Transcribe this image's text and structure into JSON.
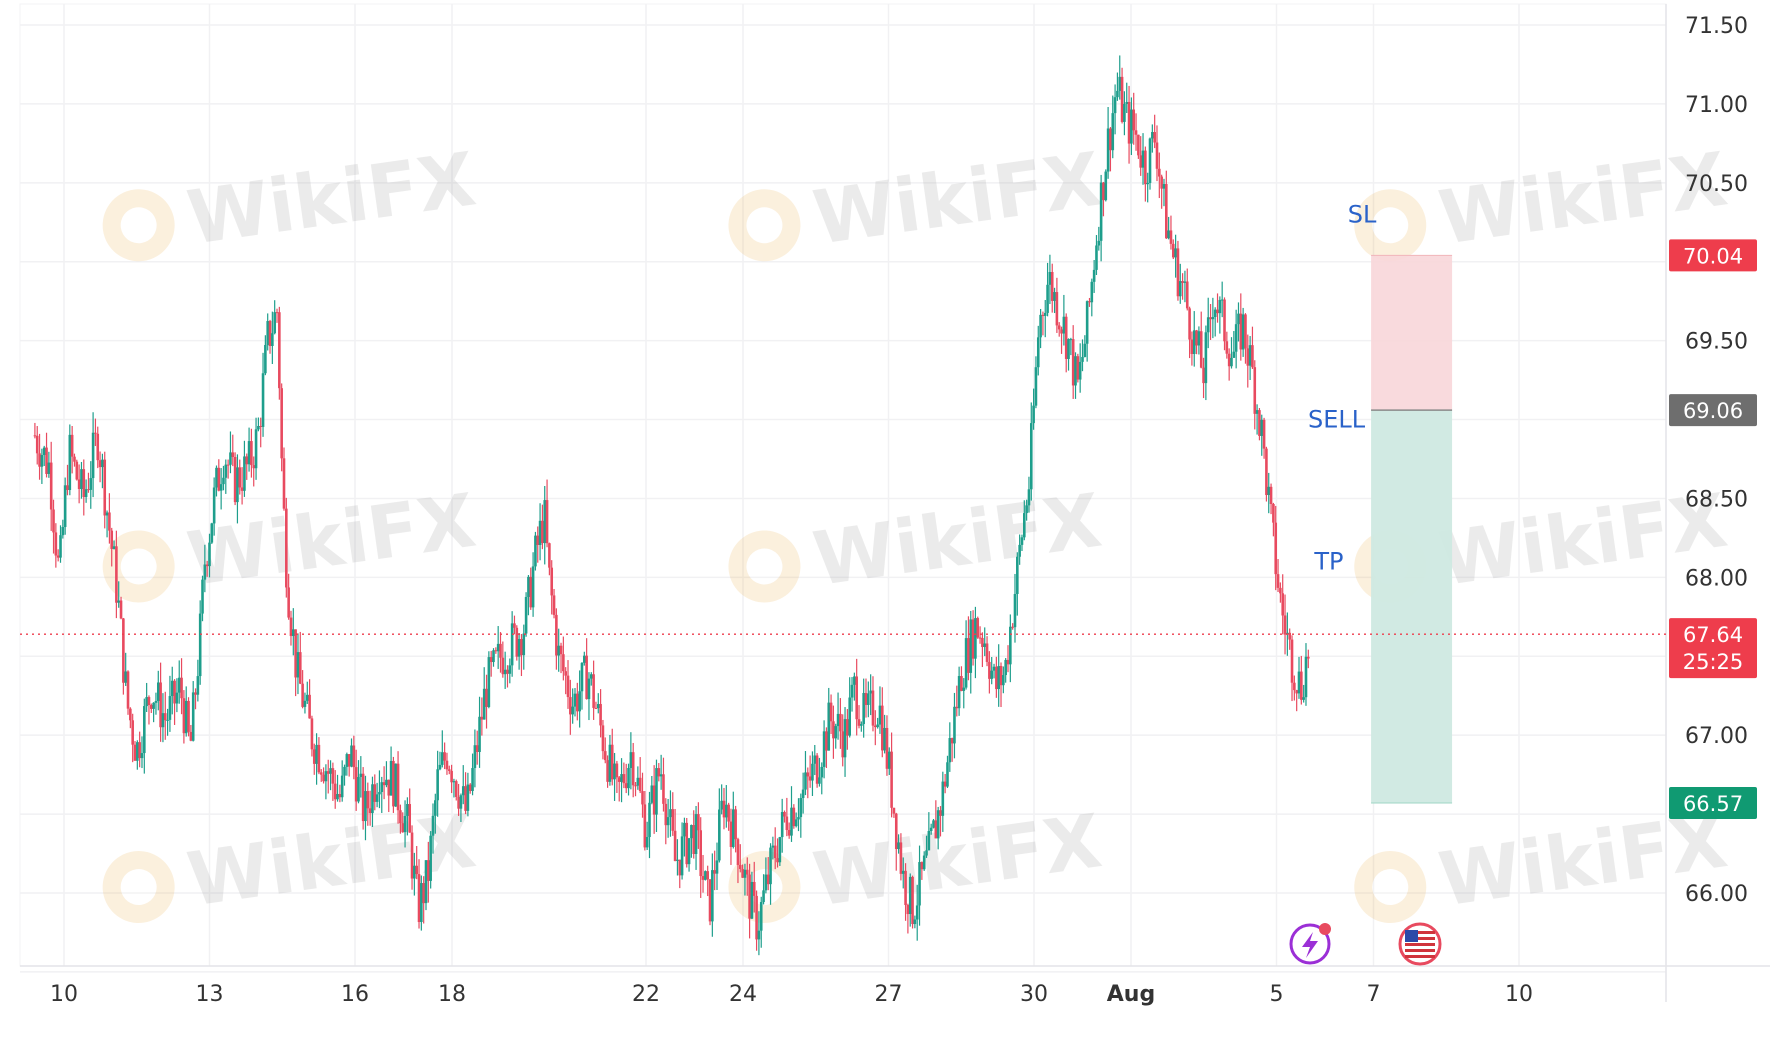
{
  "chart_data": {
    "type": "candlestick",
    "y_ticks": [
      71.5,
      71.0,
      70.5,
      69.5,
      68.5,
      68.0,
      67.0,
      66.0
    ],
    "ylim": [
      65.3,
      71.65
    ],
    "x_ticks": [
      {
        "label": "10",
        "day": 10
      },
      {
        "label": "13",
        "day": 13
      },
      {
        "label": "16",
        "day": 16
      },
      {
        "label": "18",
        "day": 18
      },
      {
        "label": "22",
        "day": 22
      },
      {
        "label": "24",
        "day": 24
      },
      {
        "label": "27",
        "day": 27
      },
      {
        "label": "30",
        "day": 30
      },
      {
        "label": "Aug",
        "day": 32
      },
      {
        "label": "5",
        "day": 35
      },
      {
        "label": "7",
        "day": 37
      },
      {
        "label": "10",
        "day": 40
      }
    ],
    "price_path": [
      [
        9.4,
        68.9
      ],
      [
        9.7,
        68.7
      ],
      [
        9.9,
        68.0
      ],
      [
        10.1,
        68.8
      ],
      [
        10.4,
        68.5
      ],
      [
        10.7,
        68.9
      ],
      [
        10.9,
        68.4
      ],
      [
        11.1,
        67.9
      ],
      [
        11.3,
        67.2
      ],
      [
        11.5,
        66.9
      ],
      [
        11.8,
        67.3
      ],
      [
        12.1,
        67.1
      ],
      [
        12.4,
        67.3
      ],
      [
        12.6,
        66.9
      ],
      [
        12.8,
        67.6
      ],
      [
        12.9,
        68.1
      ],
      [
        13.1,
        68.5
      ],
      [
        13.3,
        68.8
      ],
      [
        13.5,
        68.6
      ],
      [
        13.8,
        68.7
      ],
      [
        14.0,
        68.9
      ],
      [
        14.2,
        69.5
      ],
      [
        14.4,
        69.7
      ],
      [
        14.5,
        68.6
      ],
      [
        14.6,
        68.0
      ],
      [
        14.8,
        67.4
      ],
      [
        15.1,
        67.0
      ],
      [
        15.4,
        66.8
      ],
      [
        15.7,
        66.6
      ],
      [
        15.9,
        66.9
      ],
      [
        16.2,
        66.5
      ],
      [
        16.5,
        66.8
      ],
      [
        16.8,
        66.7
      ],
      [
        17.1,
        66.4
      ],
      [
        17.3,
        65.9
      ],
      [
        17.5,
        66.1
      ],
      [
        17.7,
        66.7
      ],
      [
        17.9,
        66.9
      ],
      [
        18.1,
        66.7
      ],
      [
        18.3,
        66.5
      ],
      [
        18.5,
        66.9
      ],
      [
        18.7,
        67.3
      ],
      [
        19.0,
        67.5
      ],
      [
        19.3,
        67.6
      ],
      [
        19.5,
        67.7
      ],
      [
        19.7,
        68.1
      ],
      [
        19.9,
        68.4
      ],
      [
        20.0,
        68.0
      ],
      [
        20.2,
        67.5
      ],
      [
        20.5,
        67.2
      ],
      [
        20.8,
        67.4
      ],
      [
        21.1,
        67.0
      ],
      [
        21.4,
        66.6
      ],
      [
        21.7,
        66.9
      ],
      [
        22.0,
        66.4
      ],
      [
        22.3,
        66.8
      ],
      [
        22.6,
        66.2
      ],
      [
        23.0,
        66.4
      ],
      [
        23.3,
        65.9
      ],
      [
        23.6,
        66.6
      ],
      [
        23.9,
        66.3
      ],
      [
        24.1,
        66.0
      ],
      [
        24.3,
        65.8
      ],
      [
        24.6,
        66.2
      ],
      [
        24.9,
        66.5
      ],
      [
        25.2,
        66.6
      ],
      [
        25.5,
        66.8
      ],
      [
        25.8,
        67.1
      ],
      [
        26.1,
        67.0
      ],
      [
        26.3,
        67.3
      ],
      [
        26.5,
        67.1
      ],
      [
        26.8,
        67.2
      ],
      [
        27.0,
        66.8
      ],
      [
        27.3,
        66.1
      ],
      [
        27.5,
        65.9
      ],
      [
        27.8,
        66.2
      ],
      [
        28.1,
        66.6
      ],
      [
        28.3,
        67.0
      ],
      [
        28.5,
        67.4
      ],
      [
        28.8,
        67.7
      ],
      [
        29.0,
        67.6
      ],
      [
        29.2,
        67.3
      ],
      [
        29.4,
        67.4
      ],
      [
        29.6,
        67.9
      ],
      [
        29.8,
        68.4
      ],
      [
        29.9,
        68.6
      ],
      [
        30.1,
        69.6
      ],
      [
        30.3,
        69.9
      ],
      [
        30.5,
        69.7
      ],
      [
        30.7,
        69.5
      ],
      [
        30.9,
        69.2
      ],
      [
        31.1,
        69.6
      ],
      [
        31.3,
        70.2
      ],
      [
        31.5,
        70.7
      ],
      [
        31.7,
        71.1
      ],
      [
        31.9,
        70.9
      ],
      [
        32.1,
        70.8
      ],
      [
        32.3,
        70.6
      ],
      [
        32.5,
        70.8
      ],
      [
        32.7,
        70.3
      ],
      [
        32.9,
        70.0
      ],
      [
        33.1,
        69.8
      ],
      [
        33.3,
        69.5
      ],
      [
        33.5,
        69.3
      ],
      [
        33.7,
        69.8
      ],
      [
        33.9,
        69.6
      ],
      [
        34.1,
        69.4
      ],
      [
        34.3,
        69.6
      ],
      [
        34.5,
        69.3
      ],
      [
        34.7,
        68.9
      ],
      [
        34.9,
        68.3
      ],
      [
        35.1,
        67.8
      ],
      [
        35.3,
        67.5
      ],
      [
        35.5,
        67.3
      ],
      [
        35.7,
        67.6
      ]
    ],
    "trade": {
      "sl": 70.04,
      "entry": 69.06,
      "tp": 66.57,
      "current": 67.64,
      "countdown": "25:25",
      "x_start_day": 36.95,
      "x_end_day": 38.62,
      "colors": {
        "sl_zone": "#f8d6d9",
        "tp_zone": "#cfe9e1",
        "sl_badge": "#ee3d4c",
        "entry_badge": "#6e6e6e",
        "tp_badge": "#109a72",
        "current_badge": "#ee3d4c"
      }
    },
    "annotations": [
      {
        "text": "SL",
        "day": 36.47,
        "price": 70.25
      },
      {
        "text": "SELL",
        "day": 35.65,
        "price": 68.95
      },
      {
        "text": "TP",
        "day": 35.78,
        "price": 68.05
      }
    ],
    "colors": {
      "up": "#1e9e8c",
      "down": "#e84a5f",
      "grid": "#f1f1f3",
      "axis_text": "#333333",
      "annotation": "#2a62c9"
    }
  },
  "watermark": {
    "text": "WikiFX",
    "positions": [
      [
        0.16,
        0.19
      ],
      [
        0.51,
        0.19
      ],
      [
        0.86,
        0.19
      ],
      [
        0.16,
        0.52
      ],
      [
        0.51,
        0.52
      ],
      [
        0.86,
        0.52
      ],
      [
        0.16,
        0.83
      ],
      [
        0.51,
        0.83
      ],
      [
        0.86,
        0.83
      ]
    ]
  },
  "icons": [
    "lightning-icon",
    "us-flag-icon"
  ]
}
